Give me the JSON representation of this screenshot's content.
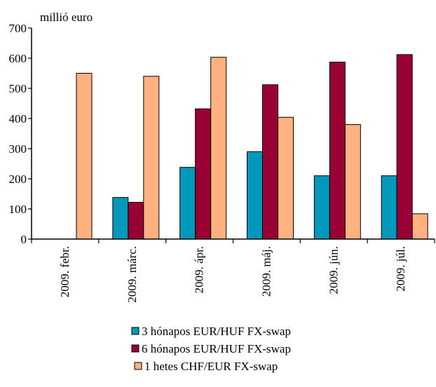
{
  "chart_data": {
    "type": "bar",
    "ylabel": "millió euro",
    "ylim": [
      0,
      700
    ],
    "yticks": [
      0,
      100,
      200,
      300,
      400,
      500,
      600,
      700
    ],
    "categories": [
      "2009. febr.",
      "2009. márc.",
      "2009. ápr.",
      "2009. máj.",
      "2009. jún.",
      "2009. júl."
    ],
    "series": [
      {
        "name": "3 hónapos EUR/HUF FX-swap",
        "color": "#0099BB",
        "values": [
          0,
          138,
          238,
          290,
          210,
          210
        ]
      },
      {
        "name": "6 hónapos EUR/HUF FX-swap",
        "color": "#990033",
        "values": [
          0,
          122,
          432,
          512,
          587,
          612
        ]
      },
      {
        "name": "1 hetes CHF/EUR FX-swap",
        "color": "#FFB27F",
        "values": [
          550,
          540,
          603,
          404,
          380,
          84
        ]
      }
    ],
    "grid": false,
    "legend_position": "bottom"
  }
}
